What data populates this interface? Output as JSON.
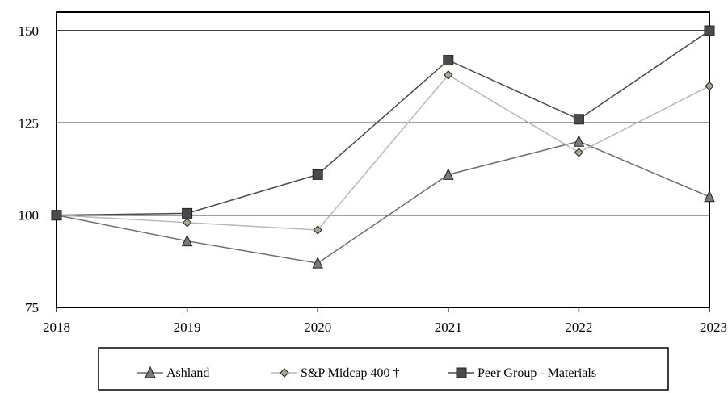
{
  "chart_data": {
    "type": "line",
    "title": "",
    "xlabel": "",
    "ylabel": "",
    "x": [
      "2018",
      "2019",
      "2020",
      "2021",
      "2022",
      "2023"
    ],
    "ylim": [
      75,
      150
    ],
    "y_ticks": [
      "75",
      "100",
      "125",
      "150"
    ],
    "grid": "horizontal",
    "legend_position": "bottom",
    "series": [
      {
        "name": "Ashland",
        "values": [
          100,
          93,
          87,
          111,
          120,
          105
        ],
        "marker": "triangle",
        "color": "#6e6e6e",
        "marker_color": "#7a7a7a"
      },
      {
        "name": "S&P Midcap 400 †",
        "values": [
          100,
          98,
          96,
          138,
          117,
          135
        ],
        "marker": "diamond",
        "color": "#b8b8b8",
        "marker_color": "#a8a890"
      },
      {
        "name": "Peer Group - Materials",
        "values": [
          100,
          100.5,
          111,
          142,
          126,
          150
        ],
        "marker": "square",
        "color": "#4a4a4a",
        "marker_color": "#4a4a4a"
      }
    ]
  }
}
